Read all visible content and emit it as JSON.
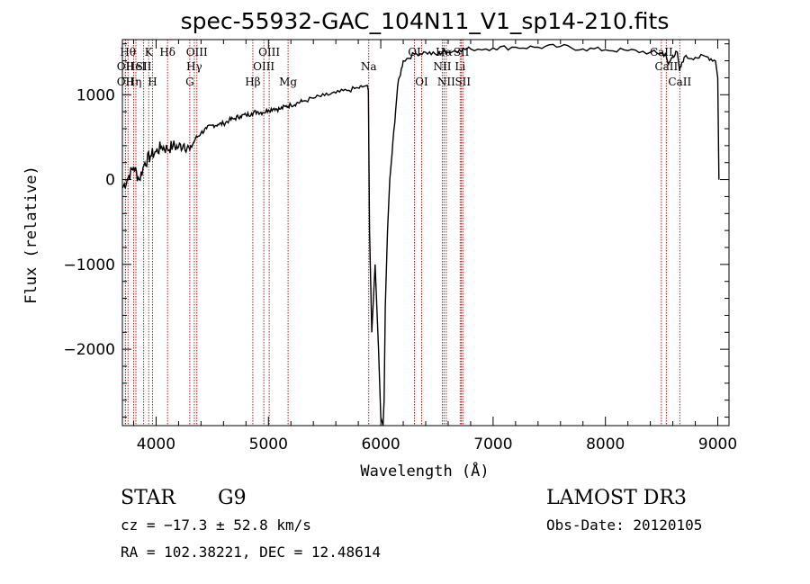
{
  "chart_data": {
    "type": "line",
    "title": "spec-55932-GAC_104N11_V1_sp14-210.fits",
    "xlabel": "Wavelength (Å)",
    "ylabel": "Flux (relative)",
    "xlim": [
      3700,
      9100
    ],
    "ylim": [
      -2900,
      1650
    ],
    "x_ticks": [
      4000,
      5000,
      6000,
      7000,
      8000,
      9000
    ],
    "x_tick_labels": [
      "4000",
      "5000",
      "6000",
      "7000",
      "8000",
      "9000"
    ],
    "y_ticks": [
      1000,
      0,
      -1000,
      -2000
    ],
    "y_tick_labels": [
      "1000",
      "0",
      "−1000",
      "−2000"
    ],
    "series": [
      {
        "name": "spectrum",
        "x": [
          3700,
          3750,
          3800,
          3850,
          3900,
          3950,
          4000,
          4050,
          4100,
          4150,
          4200,
          4250,
          4300,
          4350,
          4400,
          4450,
          4500,
          4550,
          4600,
          4650,
          4700,
          4750,
          4800,
          4850,
          4900,
          4950,
          5000,
          5050,
          5100,
          5150,
          5200,
          5250,
          5300,
          5400,
          5500,
          5600,
          5700,
          5800,
          5850,
          5880,
          5890,
          5900,
          5920,
          5950,
          5980,
          6000,
          6020,
          6030,
          6040,
          6060,
          6080,
          6100,
          6150,
          6200,
          6300,
          6400,
          6500,
          6560,
          6600,
          6700,
          6800,
          7000,
          7200,
          7400,
          7600,
          7800,
          8000,
          8200,
          8400,
          8500,
          8540,
          8560,
          8600,
          8640,
          8660,
          8700,
          8800,
          8900,
          8980,
          9000,
          9010
        ],
        "y": [
          -100,
          20,
          150,
          0,
          200,
          280,
          330,
          390,
          360,
          400,
          380,
          420,
          350,
          480,
          550,
          600,
          640,
          650,
          660,
          700,
          720,
          750,
          760,
          780,
          800,
          790,
          820,
          840,
          830,
          860,
          880,
          900,
          920,
          960,
          990,
          1020,
          1050,
          1080,
          1100,
          1110,
          1050,
          -600,
          -1800,
          -1000,
          -2000,
          -2800,
          -2900,
          -2600,
          -1500,
          -600,
          0,
          300,
          1100,
          1400,
          1480,
          1500,
          1470,
          1510,
          1500,
          1530,
          1540,
          1550,
          1560,
          1560,
          1570,
          1540,
          1530,
          1520,
          1500,
          1490,
          1460,
          1350,
          1460,
          1500,
          1280,
          1440,
          1440,
          1450,
          1400,
          1200,
          0
        ]
      }
    ],
    "spectral_lines": [
      {
        "wavelength": 3750,
        "label": "Hθ",
        "row": 0
      },
      {
        "wavelength": 3800,
        "label": "Hη",
        "row": 2
      },
      {
        "wavelength": 3727,
        "label": "OII",
        "row": 1
      },
      {
        "wavelength": 3727,
        "label": "OII",
        "row": 2
      },
      {
        "wavelength": 3820,
        "label": "HeI",
        "row": 1
      },
      {
        "wavelength": 3889,
        "label": "SII",
        "row": 1
      },
      {
        "wavelength": 3934,
        "label": "K",
        "row": 0
      },
      {
        "wavelength": 3968,
        "label": "H",
        "row": 2
      },
      {
        "wavelength": 4102,
        "label": "Hδ",
        "row": 0
      },
      {
        "wavelength": 4300,
        "label": "G",
        "row": 2
      },
      {
        "wavelength": 4340,
        "label": "Hγ",
        "row": 1
      },
      {
        "wavelength": 4363,
        "label": "OIII",
        "row": 0
      },
      {
        "wavelength": 4861,
        "label": "Hβ",
        "row": 2
      },
      {
        "wavelength": 4959,
        "label": "OIII",
        "row": 1
      },
      {
        "wavelength": 5007,
        "label": "OIII",
        "row": 0
      },
      {
        "wavelength": 5175,
        "label": "Mg",
        "row": 2
      },
      {
        "wavelength": 5893,
        "label": "Na",
        "row": 1
      },
      {
        "wavelength": 6300,
        "label": "OI",
        "row": 0
      },
      {
        "wavelength": 6364,
        "label": "OI",
        "row": 2
      },
      {
        "wavelength": 6548,
        "label": "NII",
        "row": 1
      },
      {
        "wavelength": 6563,
        "label": "Hα",
        "row": 0
      },
      {
        "wavelength": 6583,
        "label": "NII",
        "row": 2
      },
      {
        "wavelength": 6707,
        "label": "Li",
        "row": 1
      },
      {
        "wavelength": 6717,
        "label": "SII",
        "row": 0
      },
      {
        "wavelength": 6731,
        "label": "SII",
        "row": 2
      },
      {
        "wavelength": 8498,
        "label": "CaII",
        "row": 0
      },
      {
        "wavelength": 8542,
        "label": "CaII",
        "row": 1
      },
      {
        "wavelength": 8662,
        "label": "CaII",
        "row": 2
      }
    ],
    "colors": {
      "spectrum": "#000000",
      "lines": "#b22222",
      "axes": "#000000"
    }
  },
  "footer": {
    "object_class": "STAR",
    "subclass": "G9",
    "survey": "LAMOST DR3",
    "redshift_line": "cz = −17.3 ± 52.8 km/s",
    "obs_date_line": "Obs-Date: 20120105",
    "coords_line": "RA = 102.38221, DEC =  12.48614"
  }
}
